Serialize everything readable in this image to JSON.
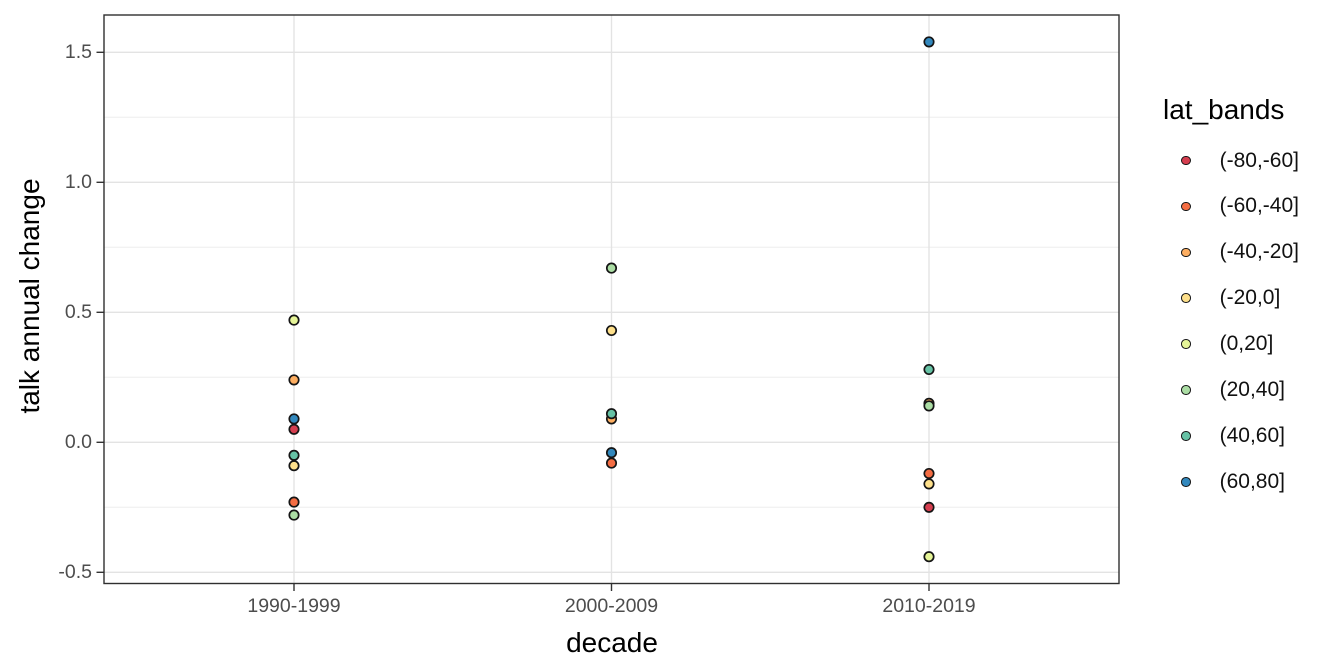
{
  "figure": {
    "y_axis_title": "talk annual change",
    "x_axis_title": "decade",
    "legend_title": "lat_bands"
  },
  "chart_data": {
    "type": "scatter",
    "title": "",
    "xlabel": "decade",
    "ylabel": "talk annual change",
    "x_categories": [
      "1990-1999",
      "2000-2009",
      "2010-2019"
    ],
    "y_tick_labels_top_to_bottom": [
      "1.5",
      "1.0",
      "0.5",
      "0.0",
      "-0.5"
    ],
    "y_major_ticks": [
      1.5,
      1.0,
      0.5,
      0.0,
      -0.5
    ],
    "y_minor_ticks": [
      1.25,
      0.75,
      0.25,
      -0.25
    ],
    "ylim": [
      -0.54,
      1.64
    ],
    "grid": "major+minor horizontal, major vertical at categories",
    "legend_position": "right",
    "legend_title": "lat_bands",
    "point_style": "filled circle with black outline",
    "colors": {
      "panel_background": "#ffffff",
      "panel_border": "#2f2f2f",
      "gridline": "#e5e5e5",
      "tick_text": "#4d4d4d"
    },
    "series": [
      {
        "name": "(-80,-60]",
        "color": "#D53E4F",
        "points": [
          {
            "x": "1990-1999",
            "y": 0.05
          },
          {
            "x": "2010-2019",
            "y": -0.25
          }
        ]
      },
      {
        "name": "(-60,-40]",
        "color": "#F46D43",
        "points": [
          {
            "x": "1990-1999",
            "y": -0.23
          },
          {
            "x": "2000-2009",
            "y": -0.08
          },
          {
            "x": "2010-2019",
            "y": -0.12
          }
        ]
      },
      {
        "name": "(-40,-20]",
        "color": "#FDAE61",
        "points": [
          {
            "x": "1990-1999",
            "y": 0.24
          },
          {
            "x": "2000-2009",
            "y": 0.09
          },
          {
            "x": "2010-2019",
            "y": 0.15
          }
        ]
      },
      {
        "name": "(-20,0]",
        "color": "#FEE08B",
        "points": [
          {
            "x": "1990-1999",
            "y": -0.09
          },
          {
            "x": "2000-2009",
            "y": 0.43
          },
          {
            "x": "2010-2019",
            "y": -0.16
          }
        ]
      },
      {
        "name": "(0,20]",
        "color": "#E6F598",
        "points": [
          {
            "x": "1990-1999",
            "y": 0.47
          },
          {
            "x": "2010-2019",
            "y": -0.44
          }
        ]
      },
      {
        "name": "(20,40]",
        "color": "#ABDDA4",
        "points": [
          {
            "x": "1990-1999",
            "y": -0.28
          },
          {
            "x": "2000-2009",
            "y": 0.67
          },
          {
            "x": "2010-2019",
            "y": 0.14
          }
        ]
      },
      {
        "name": "(40,60]",
        "color": "#66C2A5",
        "points": [
          {
            "x": "1990-1999",
            "y": -0.05
          },
          {
            "x": "2000-2009",
            "y": 0.11
          },
          {
            "x": "2010-2019",
            "y": 0.28
          }
        ]
      },
      {
        "name": "(60,80]",
        "color": "#3288BD",
        "points": [
          {
            "x": "1990-1999",
            "y": 0.09
          },
          {
            "x": "2000-2009",
            "y": -0.04
          },
          {
            "x": "2010-2019",
            "y": 1.54
          }
        ]
      }
    ]
  }
}
